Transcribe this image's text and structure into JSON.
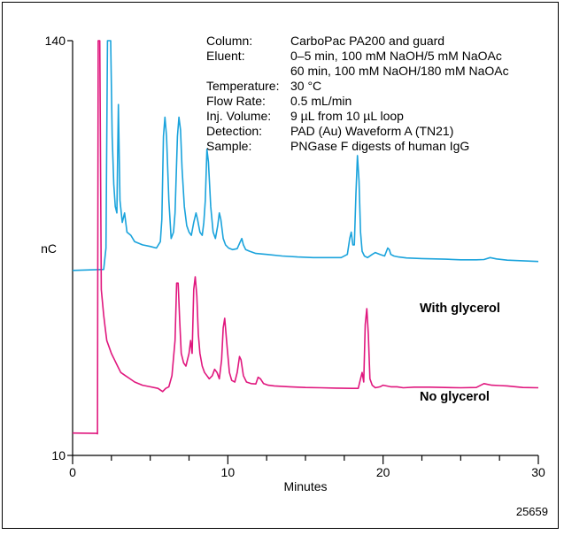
{
  "figure_id": "25659",
  "chart_data": {
    "type": "line",
    "xlabel": "Minutes",
    "ylabel": "nC",
    "xlim": [
      0,
      30
    ],
    "ylim": [
      10,
      140
    ],
    "x_ticks": [
      0,
      10,
      20,
      30
    ],
    "y_ticks": [
      10,
      140
    ],
    "grid": false,
    "conditions": [
      {
        "label": "Column:",
        "value": "CarboPac PA200 and guard"
      },
      {
        "label": "Eluent:",
        "value": "0–5 min, 100 mM NaOH/5 mM NaOAc"
      },
      {
        "label": "",
        "value": "60 min, 100 mM NaOH/180 mM NaOAc"
      },
      {
        "label": "Temperature:",
        "value": "30 °C"
      },
      {
        "label": "Flow Rate:",
        "value": "0.5 mL/min"
      },
      {
        "label": "Inj. Volume:",
        "value": "9 µL from 10 µL loop"
      },
      {
        "label": "Detection:",
        "value": "PAD (Au) Waveform A (TN21)"
      },
      {
        "label": "Sample:",
        "value": "PNGase F digests of human IgG"
      }
    ],
    "series": [
      {
        "name": "With glycerol",
        "color": "#1aa3dc",
        "baseline": 68,
        "x": [
          0,
          2.0,
          2.15,
          2.25,
          2.35,
          2.45,
          2.55,
          2.65,
          2.75,
          2.85,
          2.95,
          3.05,
          3.2,
          3.35,
          3.5,
          3.75,
          4.0,
          4.5,
          5.0,
          5.4,
          5.65,
          5.75,
          5.85,
          5.95,
          6.05,
          6.2,
          6.35,
          6.5,
          6.6,
          6.75,
          6.85,
          6.95,
          7.05,
          7.2,
          7.35,
          7.5,
          7.65,
          7.8,
          7.95,
          8.05,
          8.2,
          8.35,
          8.45,
          8.55,
          8.65,
          8.75,
          8.9,
          9.05,
          9.2,
          9.35,
          9.45,
          9.55,
          9.7,
          9.85,
          10.05,
          10.3,
          10.6,
          10.8,
          10.9,
          11.0,
          11.15,
          11.4,
          11.8,
          12.5,
          13.5,
          14.5,
          15.5,
          16.5,
          17.3,
          17.7,
          17.85,
          17.95,
          18.05,
          18.15,
          18.25,
          18.35,
          18.45,
          18.55,
          18.65,
          18.8,
          19.0,
          19.3,
          19.5,
          19.8,
          20.1,
          20.3,
          20.4,
          20.5,
          20.7,
          21.0,
          21.5,
          22.5,
          24,
          25,
          26,
          26.5,
          26.9,
          27.3,
          28,
          29,
          30
        ],
        "y": [
          68,
          68.3,
          75,
          140,
          140,
          140,
          110,
          95,
          88,
          86,
          120,
          90,
          83,
          86,
          80,
          79,
          77,
          76,
          75.5,
          75,
          77,
          84,
          110,
          116,
          110,
          90,
          78,
          80,
          86,
          110,
          116,
          112,
          100,
          88,
          82,
          80,
          79,
          83,
          86,
          84,
          80,
          79,
          83,
          90,
          106,
          102,
          88,
          80,
          78,
          82,
          86,
          84,
          78,
          76,
          75,
          74.5,
          74.8,
          77,
          78,
          76,
          74.5,
          74,
          73.3,
          73,
          72.5,
          72.2,
          72,
          72,
          72,
          73,
          78,
          80,
          76,
          76,
          92,
          104,
          96,
          80,
          74,
          72.5,
          72,
          73,
          73.6,
          73,
          72.5,
          75,
          74.5,
          73,
          72.5,
          72.2,
          71.9,
          71.7,
          71.5,
          71.3,
          71.3,
          71.4,
          72,
          71.6,
          71.2,
          71,
          70.8
        ]
      },
      {
        "name": "No glycerol",
        "color": "#e0177e",
        "baseline": 17,
        "x": [
          0,
          1.55,
          1.6,
          1.65,
          1.75,
          1.85,
          2.0,
          2.1,
          2.2,
          2.35,
          2.5,
          2.7,
          2.9,
          3.1,
          3.4,
          3.7,
          4.0,
          4.5,
          5.0,
          5.5,
          5.8,
          6.0,
          6.2,
          6.4,
          6.6,
          6.7,
          6.8,
          6.9,
          7.0,
          7.15,
          7.3,
          7.5,
          7.6,
          7.7,
          7.8,
          7.9,
          8.0,
          8.1,
          8.2,
          8.35,
          8.5,
          8.65,
          8.8,
          9.0,
          9.15,
          9.3,
          9.45,
          9.6,
          9.7,
          9.8,
          9.95,
          10.1,
          10.25,
          10.45,
          10.6,
          10.75,
          10.85,
          11.0,
          11.2,
          11.5,
          11.8,
          11.95,
          12.1,
          12.3,
          12.6,
          13.0,
          14.0,
          15.0,
          16.0,
          17.0,
          18.0,
          18.4,
          18.55,
          18.65,
          18.75,
          18.85,
          18.95,
          19.05,
          19.15,
          19.3,
          19.5,
          19.8,
          20.0,
          20.5,
          20.9,
          21.3,
          22,
          23,
          24,
          25,
          26,
          26.5,
          27.0,
          27.5,
          28.0,
          29.0,
          30
        ],
        "y": [
          17,
          16.9,
          16.8,
          140,
          140,
          62,
          54,
          50,
          46,
          44,
          42,
          40,
          38,
          36,
          35,
          34,
          33,
          32,
          31.5,
          31,
          30,
          31,
          31.5,
          35,
          46,
          64,
          64,
          52,
          42,
          39,
          38,
          42,
          46,
          42,
          62,
          66,
          60,
          48,
          42,
          38,
          36,
          35,
          34,
          35,
          37,
          36,
          34,
          40,
          50,
          53,
          44,
          36,
          33.5,
          33,
          36,
          41,
          40,
          35,
          33,
          32.5,
          32.4,
          34.5,
          34,
          32.5,
          32,
          31.8,
          31.5,
          31.3,
          31.2,
          31.1,
          31,
          31,
          34,
          36,
          33,
          51,
          56,
          48,
          34,
          32,
          31.2,
          31.5,
          32,
          31.5,
          31.5,
          31.2,
          31.4,
          31.4,
          31.3,
          31.2,
          31.3,
          32.5,
          32,
          31.9,
          31.8,
          31.3,
          31.2
        ]
      }
    ]
  }
}
